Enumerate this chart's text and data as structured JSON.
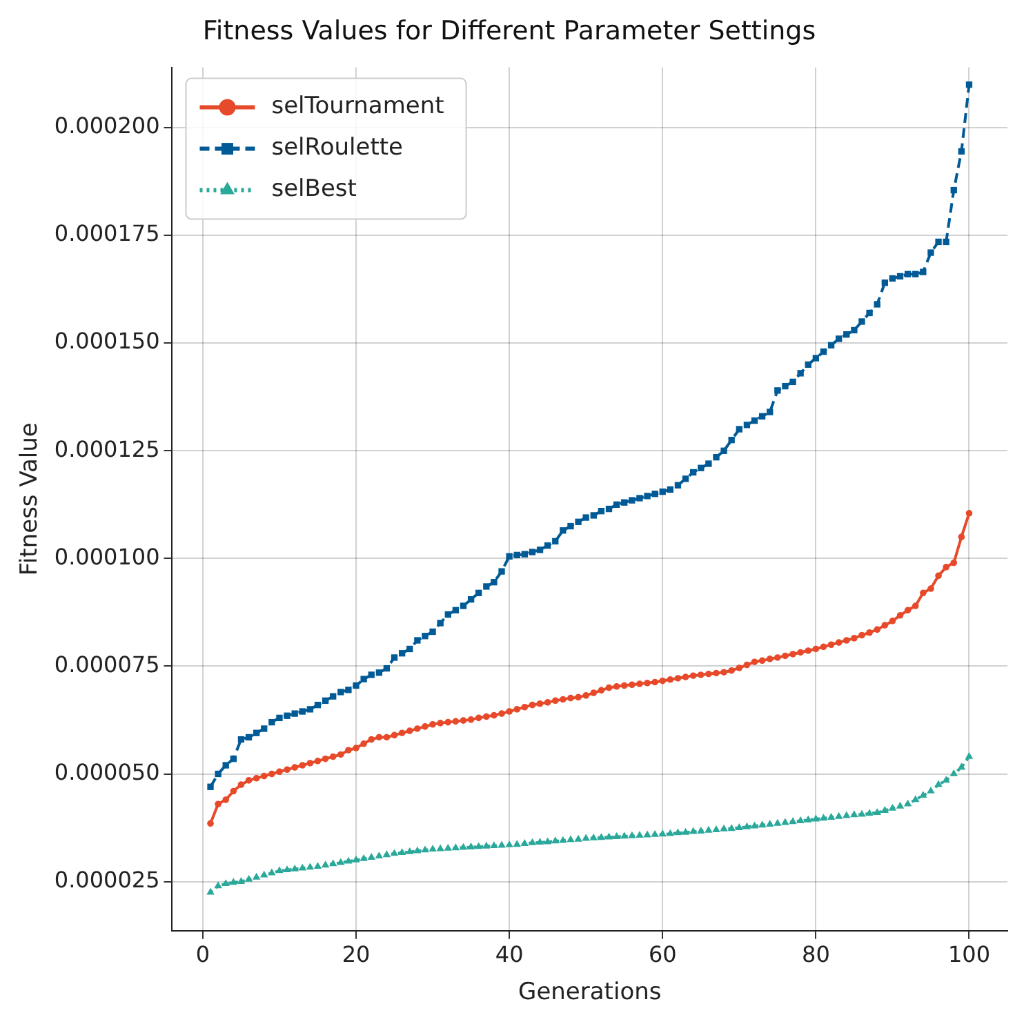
{
  "chart_data": {
    "type": "line",
    "title": "Fitness Values for Different Parameter Settings",
    "xlabel": "Generations",
    "ylabel": "Fitness Value",
    "x": [
      1,
      2,
      3,
      4,
      5,
      6,
      7,
      8,
      9,
      10,
      11,
      12,
      13,
      14,
      15,
      16,
      17,
      18,
      19,
      20,
      21,
      22,
      23,
      24,
      25,
      26,
      27,
      28,
      29,
      30,
      31,
      32,
      33,
      34,
      35,
      36,
      37,
      38,
      39,
      40,
      41,
      42,
      43,
      44,
      45,
      46,
      47,
      48,
      49,
      50,
      51,
      52,
      53,
      54,
      55,
      56,
      57,
      58,
      59,
      60,
      61,
      62,
      63,
      64,
      65,
      66,
      67,
      68,
      69,
      70,
      71,
      72,
      73,
      74,
      75,
      76,
      77,
      78,
      79,
      80,
      81,
      82,
      83,
      84,
      85,
      86,
      87,
      88,
      89,
      90,
      91,
      92,
      93,
      94,
      95,
      96,
      97,
      98,
      99,
      100
    ],
    "series": [
      {
        "name": "selTournament",
        "color": "#e64a2b",
        "marker": "circle",
        "line_style": "solid",
        "values": [
          3.85e-05,
          4.3e-05,
          4.4e-05,
          4.6e-05,
          4.75e-05,
          4.85e-05,
          4.9e-05,
          4.95e-05,
          5e-05,
          5.05e-05,
          5.1e-05,
          5.15e-05,
          5.2e-05,
          5.25e-05,
          5.3e-05,
          5.35e-05,
          5.4e-05,
          5.45e-05,
          5.55e-05,
          5.6e-05,
          5.7e-05,
          5.8e-05,
          5.85e-05,
          5.85e-05,
          5.9e-05,
          5.95e-05,
          6e-05,
          6.05e-05,
          6.1e-05,
          6.15e-05,
          6.18e-05,
          6.2e-05,
          6.22e-05,
          6.24e-05,
          6.26e-05,
          6.3e-05,
          6.33e-05,
          6.36e-05,
          6.4e-05,
          6.45e-05,
          6.5e-05,
          6.55e-05,
          6.6e-05,
          6.63e-05,
          6.66e-05,
          6.7e-05,
          6.73e-05,
          6.76e-05,
          6.78e-05,
          6.82e-05,
          6.88e-05,
          6.94e-05,
          7e-05,
          7.03e-05,
          7.05e-05,
          7.07e-05,
          7.09e-05,
          7.11e-05,
          7.13e-05,
          7.16e-05,
          7.19e-05,
          7.22e-05,
          7.25e-05,
          7.28e-05,
          7.3e-05,
          7.32e-05,
          7.34e-05,
          7.36e-05,
          7.4e-05,
          7.46e-05,
          7.53e-05,
          7.6e-05,
          7.63e-05,
          7.67e-05,
          7.7e-05,
          7.74e-05,
          7.78e-05,
          7.82e-05,
          7.86e-05,
          7.9e-05,
          7.95e-05,
          8e-05,
          8.05e-05,
          8.1e-05,
          8.15e-05,
          8.22e-05,
          8.28e-05,
          8.35e-05,
          8.45e-05,
          8.55e-05,
          8.68e-05,
          8.8e-05,
          8.9e-05,
          9.2e-05,
          9.3e-05,
          9.6e-05,
          9.8e-05,
          9.9e-05,
          0.000105,
          0.0001105
        ]
      },
      {
        "name": "selRoulette",
        "color": "#005a96",
        "marker": "square",
        "line_style": "dashed",
        "values": [
          4.7e-05,
          5e-05,
          5.2e-05,
          5.35e-05,
          5.8e-05,
          5.85e-05,
          5.95e-05,
          6.05e-05,
          6.2e-05,
          6.3e-05,
          6.35e-05,
          6.4e-05,
          6.45e-05,
          6.5e-05,
          6.6e-05,
          6.7e-05,
          6.8e-05,
          6.9e-05,
          6.95e-05,
          7.05e-05,
          7.2e-05,
          7.3e-05,
          7.35e-05,
          7.45e-05,
          7.7e-05,
          7.8e-05,
          7.9e-05,
          8.1e-05,
          8.2e-05,
          8.3e-05,
          8.5e-05,
          8.7e-05,
          8.8e-05,
          8.9e-05,
          9.05e-05,
          9.2e-05,
          9.35e-05,
          9.45e-05,
          9.7e-05,
          0.0001005,
          0.0001008,
          0.000101,
          0.0001015,
          0.000102,
          0.000103,
          0.000104,
          0.0001065,
          0.0001075,
          0.0001085,
          0.0001095,
          0.00011,
          0.000111,
          0.0001115,
          0.0001125,
          0.000113,
          0.0001135,
          0.000114,
          0.0001145,
          0.000115,
          0.0001155,
          0.000116,
          0.000117,
          0.0001185,
          0.00012,
          0.000121,
          0.000122,
          0.0001235,
          0.000125,
          0.0001275,
          0.00013,
          0.000131,
          0.000132,
          0.000133,
          0.000134,
          0.000139,
          0.00014,
          0.000141,
          0.000143,
          0.000145,
          0.0001465,
          0.000148,
          0.0001495,
          0.000151,
          0.000152,
          0.000153,
          0.000155,
          0.000157,
          0.000159,
          0.000164,
          0.000165,
          0.0001655,
          0.000166,
          0.000166,
          0.0001665,
          0.000171,
          0.0001735,
          0.0001735,
          0.0001855,
          0.0001945,
          0.00021
        ]
      },
      {
        "name": "selBest",
        "color": "#2aa89a",
        "marker": "triangle",
        "line_style": "dotted",
        "values": [
          2.25e-05,
          2.4e-05,
          2.45e-05,
          2.48e-05,
          2.5e-05,
          2.55e-05,
          2.6e-05,
          2.65e-05,
          2.7e-05,
          2.75e-05,
          2.77e-05,
          2.79e-05,
          2.81e-05,
          2.83e-05,
          2.85e-05,
          2.88e-05,
          2.91e-05,
          2.94e-05,
          2.97e-05,
          3e-05,
          3.03e-05,
          3.06e-05,
          3.09e-05,
          3.12e-05,
          3.15e-05,
          3.17e-05,
          3.19e-05,
          3.21e-05,
          3.23e-05,
          3.25e-05,
          3.26e-05,
          3.27e-05,
          3.28e-05,
          3.29e-05,
          3.3e-05,
          3.31e-05,
          3.32e-05,
          3.33e-05,
          3.34e-05,
          3.35e-05,
          3.36e-05,
          3.38e-05,
          3.4e-05,
          3.41e-05,
          3.42e-05,
          3.44e-05,
          3.45e-05,
          3.47e-05,
          3.48e-05,
          3.5e-05,
          3.51e-05,
          3.52e-05,
          3.53e-05,
          3.54e-05,
          3.55e-05,
          3.56e-05,
          3.57e-05,
          3.58e-05,
          3.59e-05,
          3.6e-05,
          3.61e-05,
          3.63e-05,
          3.64e-05,
          3.66e-05,
          3.67e-05,
          3.69e-05,
          3.7e-05,
          3.72e-05,
          3.73e-05,
          3.75e-05,
          3.77e-05,
          3.79e-05,
          3.81e-05,
          3.83e-05,
          3.85e-05,
          3.87e-05,
          3.89e-05,
          3.91e-05,
          3.93e-05,
          3.95e-05,
          3.97e-05,
          3.99e-05,
          4.01e-05,
          4.03e-05,
          4.05e-05,
          4.06e-05,
          4.08e-05,
          4.1e-05,
          4.15e-05,
          4.2e-05,
          4.25e-05,
          4.3e-05,
          4.4e-05,
          4.5e-05,
          4.6e-05,
          4.75e-05,
          4.85e-05,
          5e-05,
          5.15e-05,
          5.4e-05
        ]
      }
    ],
    "xlim": [
      -4,
      105
    ],
    "xticks": [
      0,
      20,
      40,
      60,
      80,
      100
    ],
    "ylim": [
      1.36e-05,
      0.000214
    ],
    "yticks": [
      {
        "value": 2.5e-05,
        "label": "0.000025"
      },
      {
        "value": 5e-05,
        "label": "0.000050"
      },
      {
        "value": 7.5e-05,
        "label": "0.000075"
      },
      {
        "value": 0.0001,
        "label": "0.000100"
      },
      {
        "value": 0.000125,
        "label": "0.000125"
      },
      {
        "value": 0.00015,
        "label": "0.000150"
      },
      {
        "value": 0.000175,
        "label": "0.000175"
      },
      {
        "value": 0.0002,
        "label": "0.000200"
      }
    ],
    "grid": true,
    "legend": "top left"
  }
}
